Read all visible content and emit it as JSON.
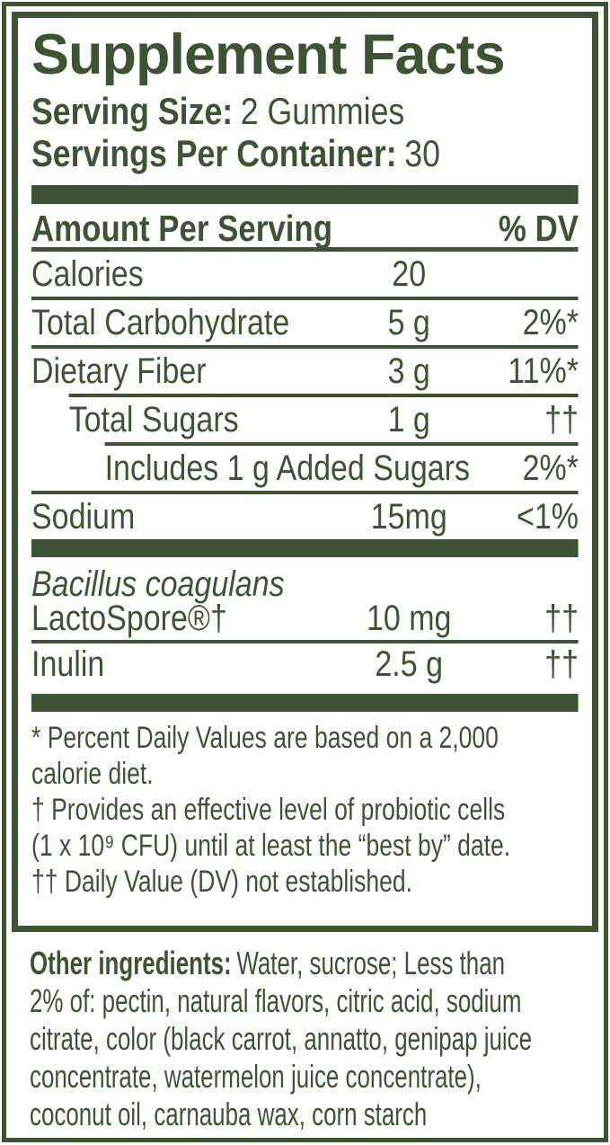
{
  "colors": {
    "label_green": "#3d5334",
    "background": "#ffffff"
  },
  "title": "Supplement Facts",
  "serving": {
    "size_label": "Serving Size:",
    "size_value": "2 Gummies",
    "per_container_label": "Servings Per Container:",
    "per_container_value": "30"
  },
  "table": {
    "header": {
      "amount_label": "Amount Per Serving",
      "dv_label": "% DV"
    },
    "rows": [
      {
        "name": "Calories",
        "amount": "20",
        "dv": ""
      },
      {
        "name": "Total Carbohydrate",
        "amount": "5 g",
        "dv": "2%*"
      },
      {
        "name": "Dietary Fiber",
        "amount": "3 g",
        "dv": "11%*"
      },
      {
        "name": "Total Sugars",
        "amount": "1 g",
        "dv": "††"
      },
      {
        "name": "Includes 1 g Added Sugars",
        "amount": "",
        "dv": "2%*"
      },
      {
        "name": "Sodium",
        "amount": "15mg",
        "dv": "<1%"
      }
    ],
    "extra_rows": [
      {
        "name_italic": "Bacillus coagulans",
        "name": "LactoSpore®†",
        "amount": "10 mg",
        "dv": "††"
      },
      {
        "name": "Inulin",
        "amount": "2.5 g",
        "dv": "††"
      }
    ]
  },
  "footnotes": [
    {
      "lines": [
        "* Percent Daily Values are based on a 2,000",
        "calorie diet."
      ]
    },
    {
      "lines": [
        "† Provides an effective level of probiotic cells",
        "(1 x 10⁹ CFU) until at least the “best by” date."
      ]
    },
    {
      "lines": [
        "†† Daily Value (DV) not established."
      ]
    }
  ],
  "other_ingredients": {
    "label": "Other ingredients:",
    "lines": [
      "Water, sucrose; Less than",
      "2% of: pectin, natural flavors, citric acid, sodium",
      "citrate, color (black carrot, annatto, genipap juice",
      "concentrate, watermelon juice concentrate),",
      "coconut oil, carnauba wax, corn starch"
    ]
  }
}
